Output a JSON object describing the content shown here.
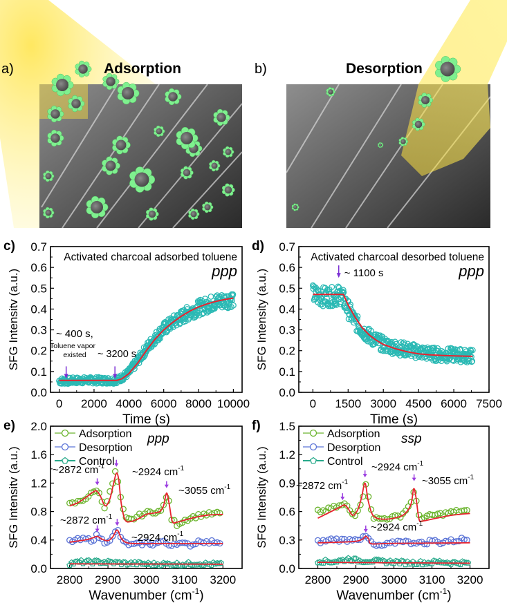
{
  "figure": {
    "panels": {
      "a": {
        "label": "a)",
        "title": "Adsorption",
        "type": "illustration",
        "description": "SEM image of activated charcoal with toluene molecules adsorbed; yellow light beam from upper left"
      },
      "b": {
        "label": "b)",
        "title": "Desorption",
        "type": "illustration",
        "description": "SEM image of activated charcoal with toluene molecules desorbing; yellow light beam from upper right"
      }
    }
  },
  "chart_data": [
    {
      "id": "c",
      "panel_label": "c)",
      "type": "scatter",
      "title": "Activated charcoal adsorbed toluene",
      "polarization": "ppp",
      "xlabel": "Time (s)",
      "ylabel": "SFG Intensitv (a.u.)",
      "xlim": [
        -500,
        10500
      ],
      "ylim": [
        0.0,
        0.7
      ],
      "xticks": [
        0,
        2000,
        4000,
        6000,
        8000,
        10000
      ],
      "yticks": [
        0.0,
        0.1,
        0.2,
        0.3,
        0.4,
        0.5,
        0.6,
        0.7
      ],
      "xtick_labels": [
        "0",
        "2000",
        "4000",
        "6000",
        "8000",
        "10000"
      ],
      "ytick_labels": [
        "0.0",
        "0.1",
        "0.2",
        "0.3",
        "0.4",
        "0.5",
        "0.6",
        "0.7"
      ],
      "series": [
        {
          "name": "data",
          "style": "open-circle",
          "color": "#2ab9b4",
          "x": [
            0,
            500,
            1000,
            1500,
            2000,
            2500,
            3000,
            3200,
            3500,
            4000,
            4500,
            5000,
            5500,
            6000,
            6500,
            7000,
            7500,
            8000,
            8500,
            9000,
            9500,
            10000
          ],
          "y": [
            0.055,
            0.055,
            0.057,
            0.058,
            0.058,
            0.057,
            0.057,
            0.057,
            0.065,
            0.095,
            0.15,
            0.21,
            0.26,
            0.305,
            0.335,
            0.36,
            0.385,
            0.405,
            0.42,
            0.435,
            0.44,
            0.45
          ],
          "scatter_spread": 0.03
        },
        {
          "name": "fit",
          "style": "line",
          "color": "#e8222e",
          "x": [
            0,
            3300,
            3600,
            4000,
            4500,
            5000,
            5500,
            6000,
            6500,
            7000,
            7500,
            8000,
            8500,
            9000,
            9500,
            10000
          ],
          "y": [
            0.057,
            0.057,
            0.065,
            0.09,
            0.14,
            0.2,
            0.255,
            0.3,
            0.335,
            0.365,
            0.39,
            0.41,
            0.425,
            0.437,
            0.446,
            0.453
          ]
        }
      ],
      "annotations": [
        {
          "text": "~ 400 s,",
          "x": 400
        },
        {
          "text": "Toluene vapor",
          "x": 400
        },
        {
          "text": "existed",
          "x": 400
        },
        {
          "text": "~ 3200 s",
          "x": 3200
        }
      ],
      "arrows": [
        {
          "x": 400,
          "y": 0.065,
          "color": "#7b2fd4"
        },
        {
          "x": 3200,
          "y": 0.065,
          "color": "#7b2fd4"
        }
      ]
    },
    {
      "id": "d",
      "panel_label": "d)",
      "type": "scatter",
      "title": "Activated charcoal desorbed toluene",
      "polarization": "ppp",
      "xlabel": "Time (s)",
      "ylabel": "SFG Intensity (a.u.)",
      "xlim": [
        -600,
        7500
      ],
      "ylim": [
        0.0,
        0.7
      ],
      "xticks": [
        0,
        1500,
        3000,
        4500,
        6000,
        7500
      ],
      "yticks": [
        0.0,
        0.1,
        0.2,
        0.3,
        0.4,
        0.5,
        0.6,
        0.7
      ],
      "xtick_labels": [
        "0",
        "1500",
        "3000",
        "4500",
        "6000",
        "7500"
      ],
      "ytick_labels": [
        "0.0",
        "0.1",
        "0.2",
        "0.3",
        "0.4",
        "0.5",
        "0.6",
        "0.7"
      ],
      "series": [
        {
          "name": "data",
          "style": "open-circle",
          "color": "#2ab9b4",
          "x": [
            0,
            300,
            600,
            900,
            1200,
            1500,
            1800,
            2100,
            2400,
            2700,
            3000,
            3500,
            4000,
            4500,
            5000,
            5500,
            6000,
            6500,
            6800
          ],
          "y": [
            0.47,
            0.46,
            0.46,
            0.46,
            0.47,
            0.4,
            0.34,
            0.3,
            0.27,
            0.25,
            0.23,
            0.215,
            0.205,
            0.195,
            0.185,
            0.18,
            0.18,
            0.175,
            0.175
          ],
          "scatter_spread": 0.04
        },
        {
          "name": "fit",
          "style": "line",
          "color": "#e8222e",
          "x": [
            0,
            1300,
            1500,
            1800,
            2100,
            2400,
            2700,
            3000,
            3500,
            4000,
            4500,
            5000,
            5500,
            6000,
            6800
          ],
          "y": [
            0.47,
            0.47,
            0.42,
            0.36,
            0.31,
            0.275,
            0.25,
            0.23,
            0.21,
            0.195,
            0.185,
            0.18,
            0.177,
            0.175,
            0.173
          ]
        }
      ],
      "annotations": [
        {
          "text": "~ 1100 s",
          "x": 1100
        }
      ],
      "arrows": [
        {
          "x": 1100,
          "y": 0.55,
          "color": "#7b2fd4"
        }
      ]
    },
    {
      "id": "e",
      "panel_label": "e)",
      "type": "scatter",
      "polarization": "ppp",
      "xlabel": "Wavenumber (cm-1)",
      "xlabel_main": "Wavenumber (cm",
      "xlabel_sup": "-1",
      "xlabel_end": ")",
      "ylabel": "SFG Intensitv (a.u.)",
      "xlim": [
        2750,
        3250
      ],
      "ylim": [
        0.0,
        2.0
      ],
      "xticks": [
        2800,
        2900,
        3000,
        3100,
        3200
      ],
      "yticks": [
        0.0,
        0.4,
        0.8,
        1.2,
        1.6,
        2.0
      ],
      "xtick_labels": [
        "2800",
        "2900",
        "3000",
        "3100",
        "3200"
      ],
      "ytick_labels": [
        "0.0",
        "0.4",
        "0.8",
        "1.2",
        "1.6",
        "2.0"
      ],
      "legend": {
        "placement": "top-left",
        "entries": [
          "Adsorption",
          "Desorption",
          "Control"
        ]
      },
      "series": [
        {
          "name": "Adsorption",
          "color": "#6ab42d",
          "marker": "circle",
          "x": [
            2800,
            2820,
            2840,
            2860,
            2872,
            2890,
            2900,
            2910,
            2920,
            2924,
            2930,
            2945,
            2960,
            2980,
            3000,
            3020,
            3040,
            3050,
            3055,
            3065,
            3080,
            3100,
            3120,
            3150,
            3180,
            3200
          ],
          "y": [
            0.9,
            0.93,
            0.98,
            1.06,
            1.12,
            0.86,
            0.98,
            1.15,
            1.37,
            1.3,
            1.05,
            0.7,
            0.68,
            0.74,
            0.78,
            0.8,
            0.8,
            0.97,
            1.08,
            0.7,
            0.62,
            0.68,
            0.72,
            0.76,
            0.77,
            0.78
          ]
        },
        {
          "name": "Adsorption fit",
          "color": "#e8222e",
          "marker": "none",
          "x": [
            2800,
            2820,
            2840,
            2860,
            2870,
            2880,
            2893,
            2905,
            2915,
            2922,
            2928,
            2935,
            2945,
            2960,
            2980,
            3000,
            3020,
            3035,
            3045,
            3053,
            3060,
            3068,
            3080,
            3100,
            3130,
            3160,
            3200
          ],
          "y": [
            0.88,
            0.92,
            0.99,
            1.07,
            1.09,
            1.02,
            0.88,
            0.98,
            1.2,
            1.34,
            1.25,
            0.9,
            0.68,
            0.66,
            0.7,
            0.76,
            0.78,
            0.8,
            0.88,
            1.06,
            0.9,
            0.66,
            0.65,
            0.68,
            0.72,
            0.75,
            0.76
          ]
        },
        {
          "name": "Desorption",
          "color": "#5a73d6",
          "marker": "circle",
          "x": [
            2800,
            2820,
            2840,
            2860,
            2872,
            2890,
            2910,
            2924,
            2940,
            2960,
            2980,
            3000,
            3020,
            3040,
            3060,
            3080,
            3100,
            3120,
            3140,
            3160,
            3180,
            3200
          ],
          "y": [
            0.38,
            0.4,
            0.41,
            0.4,
            0.47,
            0.37,
            0.42,
            0.55,
            0.37,
            0.33,
            0.34,
            0.36,
            0.34,
            0.38,
            0.33,
            0.36,
            0.34,
            0.33,
            0.4,
            0.36,
            0.38,
            0.36
          ]
        },
        {
          "name": "Desorption fit",
          "color": "#e8222e",
          "marker": "none",
          "x": [
            2800,
            2840,
            2860,
            2872,
            2885,
            2900,
            2912,
            2924,
            2935,
            2950,
            2980,
            3050,
            3200
          ],
          "y": [
            0.37,
            0.4,
            0.43,
            0.45,
            0.41,
            0.39,
            0.44,
            0.54,
            0.42,
            0.36,
            0.35,
            0.35,
            0.35
          ]
        },
        {
          "name": "Control",
          "color": "#27a98a",
          "marker": "pentagon",
          "x": [
            2800,
            2830,
            2860,
            2890,
            2920,
            2950,
            2980,
            3010,
            3040,
            3070,
            3100,
            3130,
            3160,
            3200
          ],
          "y": [
            0.07,
            0.09,
            0.09,
            0.09,
            0.08,
            0.07,
            0.07,
            0.06,
            0.06,
            0.06,
            0.06,
            0.07,
            0.06,
            0.06
          ]
        },
        {
          "name": "Control fit",
          "color": "#e8222e",
          "marker": "none",
          "x": [
            2800,
            3200
          ],
          "y": [
            0.065,
            0.06
          ]
        }
      ],
      "annotations": [
        {
          "text": "~2872 cm",
          "sup": "-1",
          "series": "Adsorption"
        },
        {
          "text": "~2924 cm",
          "sup": "-1",
          "series": "Adsorption"
        },
        {
          "text": "~3055 cm",
          "sup": "-1",
          "series": "Adsorption"
        },
        {
          "text": "~2872 cm",
          "sup": "-1",
          "series": "Desorption"
        },
        {
          "text": "~2924 cm",
          "sup": "-1",
          "series": "Desorption"
        }
      ],
      "arrows": [
        {
          "x": 2872,
          "y": 1.17
        },
        {
          "x": 2922,
          "y": 1.43
        },
        {
          "x": 3053,
          "y": 1.13
        },
        {
          "x": 2872,
          "y": 0.51
        },
        {
          "x": 2924,
          "y": 0.6
        }
      ]
    },
    {
      "id": "f",
      "panel_label": "f)",
      "type": "scatter",
      "polarization": "ssp",
      "xlabel": "Wavenumber (cm-1)",
      "xlabel_main": "Wavenumber (cm",
      "xlabel_sup": "-1",
      "xlabel_end": ")",
      "ylabel": "SFG Intensity (a.u.)",
      "xlim": [
        2750,
        3250
      ],
      "ylim": [
        0.0,
        1.5
      ],
      "xticks": [
        2800,
        2900,
        3000,
        3100,
        3200
      ],
      "yticks": [
        0.0,
        0.3,
        0.6,
        0.9,
        1.2,
        1.5
      ],
      "xtick_labels": [
        "2800",
        "2900",
        "3000",
        "3100",
        "3200"
      ],
      "ytick_labels": [
        "0.0",
        "0.3",
        "0.6",
        "0.9",
        "1.2",
        "1.5"
      ],
      "legend": {
        "placement": "top-left",
        "entries": [
          "Adsorption",
          "Desorption",
          "Control"
        ]
      },
      "series": [
        {
          "name": "Adsorption",
          "color": "#6ab42d",
          "marker": "circle",
          "x": [
            2800,
            2820,
            2840,
            2860,
            2872,
            2895,
            2910,
            2918,
            2924,
            2932,
            2945,
            2960,
            2980,
            3000,
            3020,
            3040,
            3050,
            3055,
            3062,
            3075,
            3100,
            3120,
            3150,
            3180,
            3200
          ],
          "y": [
            0.6,
            0.61,
            0.64,
            0.66,
            0.68,
            0.55,
            0.66,
            0.75,
            0.9,
            0.79,
            0.54,
            0.52,
            0.53,
            0.54,
            0.56,
            0.66,
            0.76,
            0.85,
            0.58,
            0.53,
            0.56,
            0.57,
            0.59,
            0.61,
            0.6
          ]
        },
        {
          "name": "Adsorption fit",
          "color": "#e8222e",
          "marker": "none",
          "x": [
            2800,
            2820,
            2840,
            2860,
            2870,
            2880,
            2892,
            2905,
            2915,
            2924,
            2932,
            2942,
            2955,
            2980,
            3010,
            3030,
            3045,
            3052,
            3058,
            3066,
            3075,
            3100,
            3150,
            3200
          ],
          "y": [
            0.53,
            0.57,
            0.61,
            0.65,
            0.67,
            0.63,
            0.56,
            0.62,
            0.75,
            0.9,
            0.72,
            0.58,
            0.53,
            0.52,
            0.54,
            0.58,
            0.68,
            0.84,
            0.75,
            0.52,
            0.5,
            0.52,
            0.56,
            0.58
          ]
        },
        {
          "name": "Desorption",
          "color": "#5a73d6",
          "marker": "circle",
          "x": [
            2800,
            2820,
            2840,
            2860,
            2880,
            2900,
            2915,
            2928,
            2945,
            2960,
            2980,
            3000,
            3020,
            3040,
            3060,
            3080,
            3100,
            3120,
            3140,
            3160,
            3180,
            3200
          ],
          "y": [
            0.28,
            0.29,
            0.31,
            0.3,
            0.3,
            0.32,
            0.31,
            0.34,
            0.25,
            0.23,
            0.25,
            0.27,
            0.3,
            0.27,
            0.28,
            0.26,
            0.3,
            0.27,
            0.29,
            0.29,
            0.31,
            0.3
          ]
        },
        {
          "name": "Desorption fit",
          "color": "#e8222e",
          "marker": "none",
          "x": [
            2800,
            2880,
            2905,
            2918,
            2926,
            2934,
            2942,
            3000,
            3200
          ],
          "y": [
            0.27,
            0.28,
            0.29,
            0.31,
            0.34,
            0.31,
            0.26,
            0.265,
            0.27
          ]
        },
        {
          "name": "Control",
          "color": "#27a98a",
          "marker": "pentagon",
          "x": [
            2800,
            2830,
            2860,
            2880,
            2910,
            2940,
            2970,
            3000,
            3030,
            3060,
            3090,
            3120,
            3150,
            3180,
            3200
          ],
          "y": [
            0.08,
            0.07,
            0.08,
            0.1,
            0.08,
            0.08,
            0.07,
            0.07,
            0.06,
            0.06,
            0.06,
            0.07,
            0.06,
            0.06,
            0.05
          ]
        },
        {
          "name": "Control fit",
          "color": "#e8222e",
          "marker": "none",
          "x": [
            2800,
            3200
          ],
          "y": [
            0.065,
            0.055
          ]
        }
      ],
      "annotations": [
        {
          "text": "~2872 cm",
          "sup": "-1",
          "series": "Adsorption"
        },
        {
          "text": "~2924 cm",
          "sup": "-1",
          "series": "Adsorption"
        },
        {
          "text": "~3055 cm",
          "sup": "-1",
          "series": "Adsorption"
        },
        {
          "text": "~2924 cm",
          "sup": "-1",
          "series": "Desorption"
        }
      ],
      "arrows": [
        {
          "x": 2865,
          "y": 0.72
        },
        {
          "x": 2924,
          "y": 0.96
        },
        {
          "x": 3053,
          "y": 0.92
        },
        {
          "x": 2926,
          "y": 0.38
        }
      ]
    }
  ]
}
